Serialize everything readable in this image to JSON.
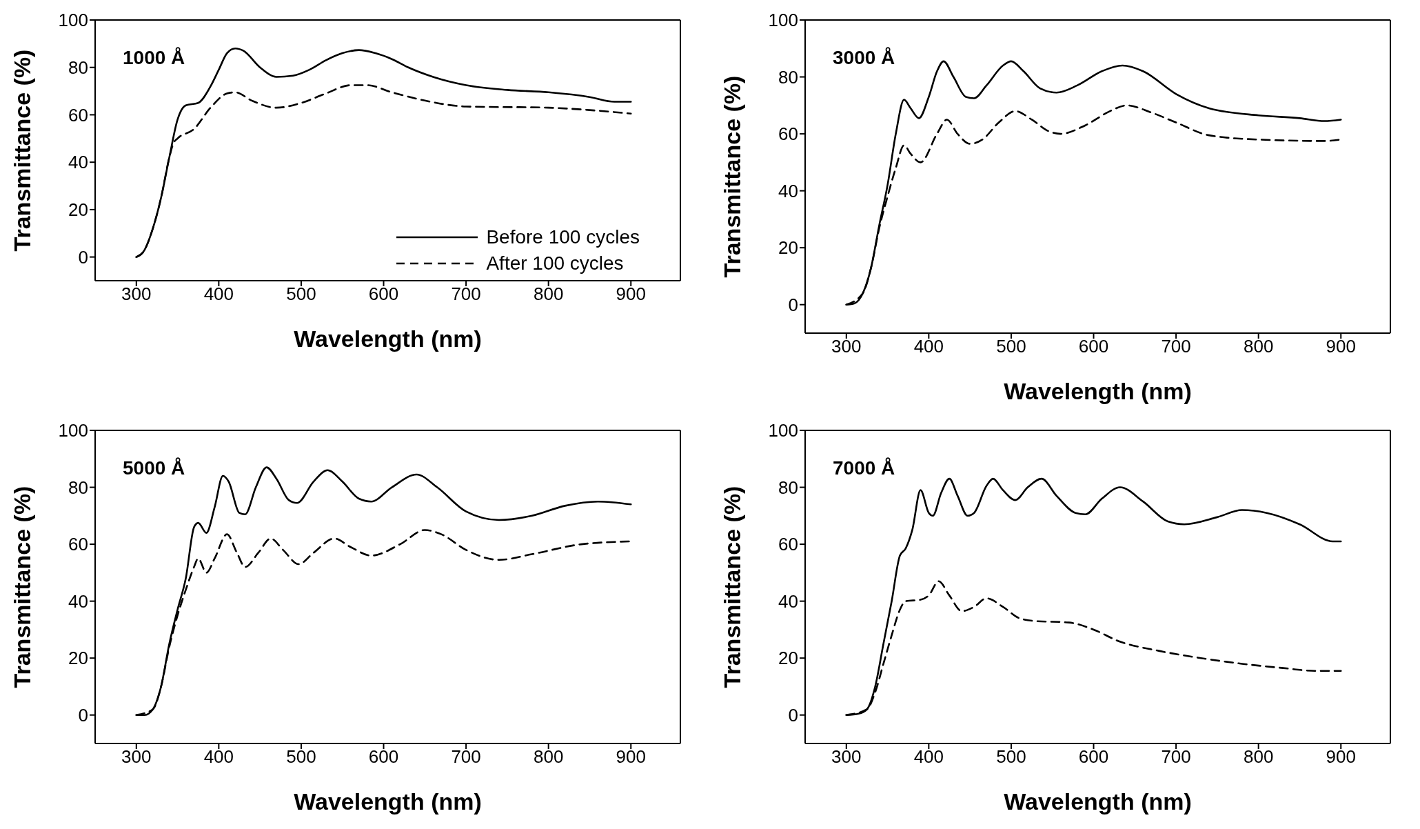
{
  "chart_data": [
    {
      "type": "line",
      "xlabel": "Wavelength (nm)",
      "ylabel": "Transmittance (%)",
      "annotations": [
        "1000 Å"
      ],
      "xlim": [
        250,
        960
      ],
      "xticks": [
        300,
        400,
        500,
        600,
        700,
        800,
        900
      ],
      "ylim": [
        -10,
        100
      ],
      "yticks": [
        0,
        20,
        40,
        60,
        80,
        100
      ],
      "legend": "bottom right",
      "marker": "none",
      "series": [
        {
          "name": "Before 100 cycles",
          "color": "#000000",
          "line_style": "solid",
          "x": [
            300,
            310,
            320,
            330,
            340,
            350,
            360,
            375,
            390,
            400,
            410,
            420,
            430,
            450,
            470,
            490,
            510,
            530,
            550,
            570,
            590,
            610,
            630,
            660,
            700,
            750,
            800,
            850,
            880,
            900
          ],
          "values": [
            0,
            3,
            12,
            25,
            42,
            58,
            64,
            65,
            72,
            79,
            86,
            88,
            87,
            80,
            76,
            76.5,
            79,
            83,
            86,
            87.3,
            86,
            83.5,
            80,
            76,
            72.5,
            70.5,
            69.5,
            67.5,
            65.5,
            65.5
          ]
        },
        {
          "name": "After 100 cycles",
          "color": "#000000",
          "line_style": "dashed",
          "x": [
            300,
            310,
            320,
            330,
            340,
            345,
            350,
            370,
            390,
            410,
            420,
            440,
            470,
            500,
            530,
            560,
            580,
            610,
            650,
            700,
            800,
            850,
            900
          ],
          "values": [
            0,
            3,
            12,
            25,
            42,
            48,
            50,
            54,
            63,
            69,
            69.5,
            66,
            63,
            65,
            69,
            72.5,
            72.5,
            69.5,
            66,
            63.5,
            63,
            62,
            60.5
          ]
        }
      ]
    },
    {
      "type": "line",
      "xlabel": "Wavelength (nm)",
      "ylabel": "Transmittance (%)",
      "annotations": [
        "3000 Å"
      ],
      "xlim": [
        250,
        960
      ],
      "xticks": [
        300,
        400,
        500,
        600,
        700,
        800,
        900
      ],
      "ylim": [
        -10,
        100
      ],
      "yticks": [
        0,
        20,
        40,
        60,
        80,
        100
      ],
      "marker": "none",
      "series": [
        {
          "color": "#000000",
          "line_style": "solid",
          "x": [
            300,
            310,
            320,
            330,
            340,
            350,
            360,
            370,
            378,
            388,
            400,
            410,
            418,
            430,
            445,
            455,
            470,
            490,
            500,
            515,
            535,
            555,
            580,
            610,
            635,
            660,
            700,
            740,
            800,
            850,
            880,
            900
          ],
          "values": [
            0,
            0.5,
            4,
            13,
            28,
            42,
            60,
            72,
            69,
            65.5,
            73,
            82,
            85.5,
            80,
            73,
            72.5,
            77,
            84,
            85.5,
            82,
            76,
            74.5,
            77,
            82,
            84,
            82,
            74,
            69,
            66.5,
            65.5,
            64.5,
            65
          ]
        },
        {
          "color": "#000000",
          "line_style": "dashed",
          "x": [
            300,
            320,
            330,
            340,
            350,
            360,
            370,
            378,
            390,
            410,
            422,
            435,
            450,
            465,
            485,
            505,
            525,
            545,
            560,
            590,
            620,
            640,
            670,
            700,
            740,
            800,
            880,
            900
          ],
          "values": [
            0,
            4,
            13,
            27,
            38,
            48,
            56,
            53,
            50,
            60,
            65,
            60,
            56.5,
            58,
            64,
            68,
            65,
            61,
            60,
            63,
            68,
            70,
            67.5,
            64,
            59.5,
            58,
            57.5,
            58
          ]
        }
      ]
    },
    {
      "type": "line",
      "xlabel": "Wavelength (nm)",
      "ylabel": "Transmittance (%)",
      "annotations": [
        "5000 Å"
      ],
      "xlim": [
        250,
        960
      ],
      "xticks": [
        300,
        400,
        500,
        600,
        700,
        800,
        900
      ],
      "ylim": [
        -10,
        100
      ],
      "yticks": [
        0,
        20,
        40,
        60,
        80,
        100
      ],
      "marker": "none",
      "series": [
        {
          "color": "#000000",
          "line_style": "solid",
          "x": [
            300,
            310,
            320,
            330,
            340,
            350,
            360,
            370,
            375,
            385,
            395,
            405,
            412,
            425,
            432,
            445,
            458,
            470,
            485,
            495,
            515,
            532,
            550,
            570,
            585,
            610,
            640,
            665,
            700,
            740,
            780,
            820,
            860,
            900
          ],
          "values": [
            0,
            0,
            2,
            10,
            25,
            37,
            48,
            66,
            67.5,
            64,
            73,
            84,
            82,
            71,
            70.5,
            80,
            87,
            83,
            75.5,
            74.5,
            82,
            86,
            82,
            76,
            75,
            80,
            84.5,
            80,
            71.5,
            68.5,
            70,
            73.5,
            75,
            74
          ]
        },
        {
          "color": "#000000",
          "line_style": "dashed",
          "x": [
            300,
            320,
            330,
            340,
            350,
            360,
            370,
            375,
            385,
            395,
            410,
            422,
            432,
            448,
            463,
            478,
            497,
            515,
            540,
            560,
            585,
            620,
            650,
            670,
            700,
            740,
            780,
            840,
            900
          ],
          "values": [
            0,
            2,
            10,
            24,
            35,
            44,
            52,
            55,
            50,
            55,
            63.5,
            57,
            52,
            57,
            62,
            58,
            53,
            57,
            62,
            59,
            56,
            60,
            65,
            63.5,
            58,
            54.5,
            56.5,
            60,
            61
          ]
        }
      ]
    },
    {
      "type": "line",
      "xlabel": "Wavelength (nm)",
      "ylabel": "Transmittance (%)",
      "annotations": [
        "7000 Å"
      ],
      "xlim": [
        250,
        960
      ],
      "xticks": [
        300,
        400,
        500,
        600,
        700,
        800,
        900
      ],
      "ylim": [
        -10,
        100
      ],
      "yticks": [
        0,
        20,
        40,
        60,
        80,
        100
      ],
      "marker": "none",
      "series": [
        {
          "color": "#000000",
          "line_style": "solid",
          "x": [
            300,
            315,
            325,
            335,
            345,
            355,
            365,
            372,
            380,
            390,
            400,
            405,
            415,
            425,
            435,
            447,
            455,
            470,
            478,
            490,
            505,
            520,
            537,
            555,
            578,
            590,
            610,
            632,
            660,
            690,
            710,
            750,
            780,
            810,
            850,
            890,
            900
          ],
          "values": [
            0,
            0.5,
            2,
            10,
            25,
            40,
            56,
            58.5,
            65,
            79,
            71,
            70,
            78,
            83,
            77,
            70,
            71,
            80.5,
            83,
            79,
            75.5,
            80,
            83,
            77,
            71,
            70.5,
            76,
            80,
            75,
            68,
            67,
            69.5,
            72,
            71,
            67,
            61,
            61
          ]
        },
        {
          "color": "#000000",
          "line_style": "dashed",
          "x": [
            300,
            325,
            335,
            345,
            355,
            365,
            372,
            390,
            400,
            412,
            425,
            440,
            455,
            470,
            490,
            510,
            530,
            570,
            600,
            630,
            680,
            730,
            780,
            830,
            870,
            900
          ],
          "values": [
            0,
            2,
            8,
            18,
            28,
            37,
            40,
            40.5,
            42,
            47,
            42,
            36.5,
            38,
            41,
            38,
            34,
            33,
            32.5,
            30,
            26,
            22.5,
            20,
            18,
            16.5,
            15.5,
            15.5
          ]
        }
      ]
    }
  ]
}
